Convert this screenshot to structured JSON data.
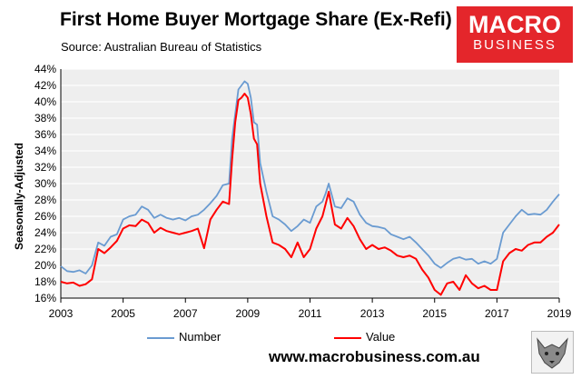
{
  "header": {
    "title": "First Home Buyer Mortgage Share (Ex-Refi)",
    "subtitle": "Source: Australian Bureau of Statistics"
  },
  "logo": {
    "line1": "MACRO",
    "line2": "BUSINESS",
    "color": "#e4262b"
  },
  "footer": {
    "website": "www.macrobusiness.com.au",
    "wolf_icon": "wolf-logo-icon"
  },
  "chart_data": {
    "type": "line",
    "ylabel": "Seasonally-Adjusted",
    "xlabel": "",
    "xlim": [
      2003,
      2019
    ],
    "ylim": [
      16,
      44
    ],
    "x_ticks": [
      "2003",
      "2005",
      "2007",
      "2009",
      "2011",
      "2013",
      "2015",
      "2017",
      "2019"
    ],
    "y_ticks": [
      "16%",
      "18%",
      "20%",
      "22%",
      "24%",
      "26%",
      "28%",
      "30%",
      "32%",
      "34%",
      "36%",
      "38%",
      "40%",
      "42%",
      "44%"
    ],
    "grid": true,
    "plot_background": "#eeeeee",
    "legend_position": "bottom",
    "series": [
      {
        "name": "Number",
        "color": "#6a9bd1",
        "points": [
          [
            2003.0,
            19.9
          ],
          [
            2003.2,
            19.3
          ],
          [
            2003.4,
            19.2
          ],
          [
            2003.6,
            19.4
          ],
          [
            2003.8,
            19.0
          ],
          [
            2004.0,
            20.0
          ],
          [
            2004.2,
            22.8
          ],
          [
            2004.4,
            22.4
          ],
          [
            2004.6,
            23.5
          ],
          [
            2004.8,
            23.8
          ],
          [
            2005.0,
            25.6
          ],
          [
            2005.2,
            26.0
          ],
          [
            2005.4,
            26.2
          ],
          [
            2005.6,
            27.2
          ],
          [
            2005.8,
            26.8
          ],
          [
            2006.0,
            25.8
          ],
          [
            2006.2,
            26.2
          ],
          [
            2006.4,
            25.8
          ],
          [
            2006.6,
            25.6
          ],
          [
            2006.8,
            25.8
          ],
          [
            2007.0,
            25.5
          ],
          [
            2007.2,
            26.0
          ],
          [
            2007.4,
            26.2
          ],
          [
            2007.6,
            26.8
          ],
          [
            2007.8,
            27.6
          ],
          [
            2008.0,
            28.5
          ],
          [
            2008.2,
            29.8
          ],
          [
            2008.4,
            30.0
          ],
          [
            2008.5,
            35.5
          ],
          [
            2008.6,
            38.5
          ],
          [
            2008.7,
            41.5
          ],
          [
            2008.8,
            42.0
          ],
          [
            2008.9,
            42.5
          ],
          [
            2009.0,
            42.2
          ],
          [
            2009.1,
            40.5
          ],
          [
            2009.2,
            37.5
          ],
          [
            2009.3,
            37.2
          ],
          [
            2009.4,
            32.5
          ],
          [
            2009.6,
            29.0
          ],
          [
            2009.8,
            26.0
          ],
          [
            2010.0,
            25.6
          ],
          [
            2010.2,
            25.0
          ],
          [
            2010.4,
            24.2
          ],
          [
            2010.6,
            24.8
          ],
          [
            2010.8,
            25.6
          ],
          [
            2011.0,
            25.2
          ],
          [
            2011.2,
            27.2
          ],
          [
            2011.4,
            27.8
          ],
          [
            2011.5,
            28.8
          ],
          [
            2011.6,
            30.0
          ],
          [
            2011.8,
            27.2
          ],
          [
            2012.0,
            27.0
          ],
          [
            2012.2,
            28.2
          ],
          [
            2012.4,
            27.8
          ],
          [
            2012.6,
            26.2
          ],
          [
            2012.8,
            25.2
          ],
          [
            2013.0,
            24.8
          ],
          [
            2013.2,
            24.7
          ],
          [
            2013.4,
            24.5
          ],
          [
            2013.6,
            23.8
          ],
          [
            2013.8,
            23.5
          ],
          [
            2014.0,
            23.2
          ],
          [
            2014.2,
            23.5
          ],
          [
            2014.4,
            22.8
          ],
          [
            2014.6,
            22.0
          ],
          [
            2014.8,
            21.2
          ],
          [
            2015.0,
            20.2
          ],
          [
            2015.2,
            19.7
          ],
          [
            2015.4,
            20.3
          ],
          [
            2015.6,
            20.8
          ],
          [
            2015.8,
            21.0
          ],
          [
            2016.0,
            20.7
          ],
          [
            2016.2,
            20.8
          ],
          [
            2016.4,
            20.2
          ],
          [
            2016.6,
            20.5
          ],
          [
            2016.8,
            20.2
          ],
          [
            2017.0,
            20.8
          ],
          [
            2017.2,
            24.0
          ],
          [
            2017.4,
            25.0
          ],
          [
            2017.6,
            26.0
          ],
          [
            2017.8,
            26.8
          ],
          [
            2018.0,
            26.2
          ],
          [
            2018.2,
            26.3
          ],
          [
            2018.4,
            26.2
          ],
          [
            2018.6,
            26.8
          ],
          [
            2018.8,
            27.8
          ],
          [
            2019.0,
            28.7
          ]
        ]
      },
      {
        "name": "Value",
        "color": "#ff0000",
        "points": [
          [
            2003.0,
            18.0
          ],
          [
            2003.2,
            17.8
          ],
          [
            2003.4,
            17.9
          ],
          [
            2003.6,
            17.5
          ],
          [
            2003.8,
            17.7
          ],
          [
            2004.0,
            18.3
          ],
          [
            2004.2,
            22.0
          ],
          [
            2004.4,
            21.5
          ],
          [
            2004.6,
            22.2
          ],
          [
            2004.8,
            23.0
          ],
          [
            2005.0,
            24.5
          ],
          [
            2005.2,
            24.9
          ],
          [
            2005.4,
            24.8
          ],
          [
            2005.6,
            25.6
          ],
          [
            2005.8,
            25.2
          ],
          [
            2006.0,
            24.0
          ],
          [
            2006.2,
            24.6
          ],
          [
            2006.4,
            24.2
          ],
          [
            2006.6,
            24.0
          ],
          [
            2006.8,
            23.8
          ],
          [
            2007.0,
            24.0
          ],
          [
            2007.2,
            24.2
          ],
          [
            2007.4,
            24.5
          ],
          [
            2007.6,
            22.1
          ],
          [
            2007.8,
            25.6
          ],
          [
            2008.0,
            26.8
          ],
          [
            2008.2,
            27.8
          ],
          [
            2008.4,
            27.5
          ],
          [
            2008.5,
            33.0
          ],
          [
            2008.6,
            37.5
          ],
          [
            2008.7,
            40.2
          ],
          [
            2008.8,
            40.5
          ],
          [
            2008.9,
            41.0
          ],
          [
            2009.0,
            40.5
          ],
          [
            2009.1,
            38.5
          ],
          [
            2009.2,
            35.5
          ],
          [
            2009.3,
            34.8
          ],
          [
            2009.4,
            30.0
          ],
          [
            2009.6,
            26.0
          ],
          [
            2009.8,
            22.8
          ],
          [
            2010.0,
            22.5
          ],
          [
            2010.2,
            22.0
          ],
          [
            2010.4,
            21.0
          ],
          [
            2010.6,
            22.8
          ],
          [
            2010.8,
            21.0
          ],
          [
            2011.0,
            22.0
          ],
          [
            2011.2,
            24.5
          ],
          [
            2011.4,
            26.0
          ],
          [
            2011.5,
            27.5
          ],
          [
            2011.6,
            29.0
          ],
          [
            2011.8,
            25.0
          ],
          [
            2012.0,
            24.5
          ],
          [
            2012.2,
            25.8
          ],
          [
            2012.4,
            24.8
          ],
          [
            2012.6,
            23.2
          ],
          [
            2012.8,
            22.0
          ],
          [
            2013.0,
            22.5
          ],
          [
            2013.2,
            22.0
          ],
          [
            2013.4,
            22.2
          ],
          [
            2013.6,
            21.8
          ],
          [
            2013.8,
            21.2
          ],
          [
            2014.0,
            21.0
          ],
          [
            2014.2,
            21.2
          ],
          [
            2014.4,
            20.8
          ],
          [
            2014.6,
            19.5
          ],
          [
            2014.8,
            18.5
          ],
          [
            2015.0,
            17.0
          ],
          [
            2015.2,
            16.4
          ],
          [
            2015.4,
            17.8
          ],
          [
            2015.6,
            18.0
          ],
          [
            2015.8,
            17.0
          ],
          [
            2016.0,
            18.8
          ],
          [
            2016.2,
            17.8
          ],
          [
            2016.4,
            17.2
          ],
          [
            2016.6,
            17.5
          ],
          [
            2016.8,
            17.0
          ],
          [
            2017.0,
            17.0
          ],
          [
            2017.2,
            20.5
          ],
          [
            2017.4,
            21.5
          ],
          [
            2017.6,
            22.0
          ],
          [
            2017.8,
            21.8
          ],
          [
            2018.0,
            22.5
          ],
          [
            2018.2,
            22.8
          ],
          [
            2018.4,
            22.8
          ],
          [
            2018.6,
            23.5
          ],
          [
            2018.8,
            24.0
          ],
          [
            2019.0,
            25.0
          ]
        ]
      }
    ]
  }
}
